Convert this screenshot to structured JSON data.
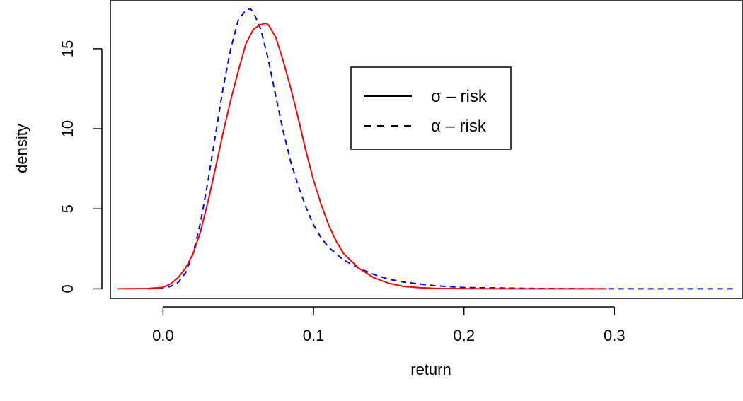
{
  "chart_data": {
    "type": "line",
    "xlabel": "return",
    "ylabel": "density",
    "xlim": [
      -0.035,
      0.385
    ],
    "ylim": [
      -0.6,
      18.0
    ],
    "x_ticks": [
      "0.0",
      "0.1",
      "0.2",
      "0.3"
    ],
    "x_tick_values": [
      0.0,
      0.1,
      0.2,
      0.3
    ],
    "y_ticks": [
      "0",
      "5",
      "10",
      "15"
    ],
    "y_tick_values": [
      0,
      5,
      10,
      15
    ],
    "grid": false,
    "legend_position": "top-right",
    "series": [
      {
        "name": "σ – risk",
        "color": "#ff0000",
        "dash": "solid",
        "x": [
          -0.03,
          -0.01,
          0.0,
          0.005,
          0.01,
          0.015,
          0.02,
          0.025,
          0.03,
          0.035,
          0.04,
          0.045,
          0.05,
          0.055,
          0.06,
          0.063,
          0.065,
          0.068,
          0.07,
          0.075,
          0.08,
          0.085,
          0.09,
          0.095,
          0.1,
          0.105,
          0.11,
          0.115,
          0.12,
          0.13,
          0.14,
          0.15,
          0.16,
          0.17,
          0.18,
          0.2,
          0.23,
          0.26,
          0.295
        ],
        "y": [
          0.0,
          0.02,
          0.1,
          0.3,
          0.7,
          1.3,
          2.2,
          3.6,
          5.5,
          7.6,
          9.8,
          11.8,
          13.6,
          15.3,
          16.2,
          16.4,
          16.5,
          16.6,
          16.5,
          15.7,
          14.2,
          12.5,
          10.6,
          8.6,
          6.8,
          5.3,
          4.0,
          3.0,
          2.2,
          1.3,
          0.7,
          0.35,
          0.15,
          0.07,
          0.03,
          0.01,
          0.0,
          0.0,
          0.0
        ]
      },
      {
        "name": "α – risk",
        "color": "#0000ff",
        "dash": "dashed",
        "x": [
          -0.01,
          0.0,
          0.005,
          0.01,
          0.015,
          0.02,
          0.025,
          0.03,
          0.035,
          0.04,
          0.045,
          0.05,
          0.055,
          0.058,
          0.06,
          0.065,
          0.07,
          0.075,
          0.08,
          0.085,
          0.09,
          0.095,
          0.1,
          0.105,
          0.11,
          0.12,
          0.13,
          0.14,
          0.15,
          0.16,
          0.18,
          0.2,
          0.25,
          0.3,
          0.38
        ],
        "y": [
          0.0,
          0.05,
          0.15,
          0.4,
          1.0,
          2.2,
          4.2,
          6.8,
          9.7,
          12.6,
          15.0,
          16.8,
          17.4,
          17.5,
          17.3,
          16.2,
          14.3,
          12.0,
          9.8,
          7.9,
          6.4,
          5.1,
          4.0,
          3.2,
          2.6,
          1.8,
          1.3,
          0.9,
          0.6,
          0.42,
          0.2,
          0.08,
          0.02,
          0.0,
          0.0
        ]
      }
    ]
  }
}
